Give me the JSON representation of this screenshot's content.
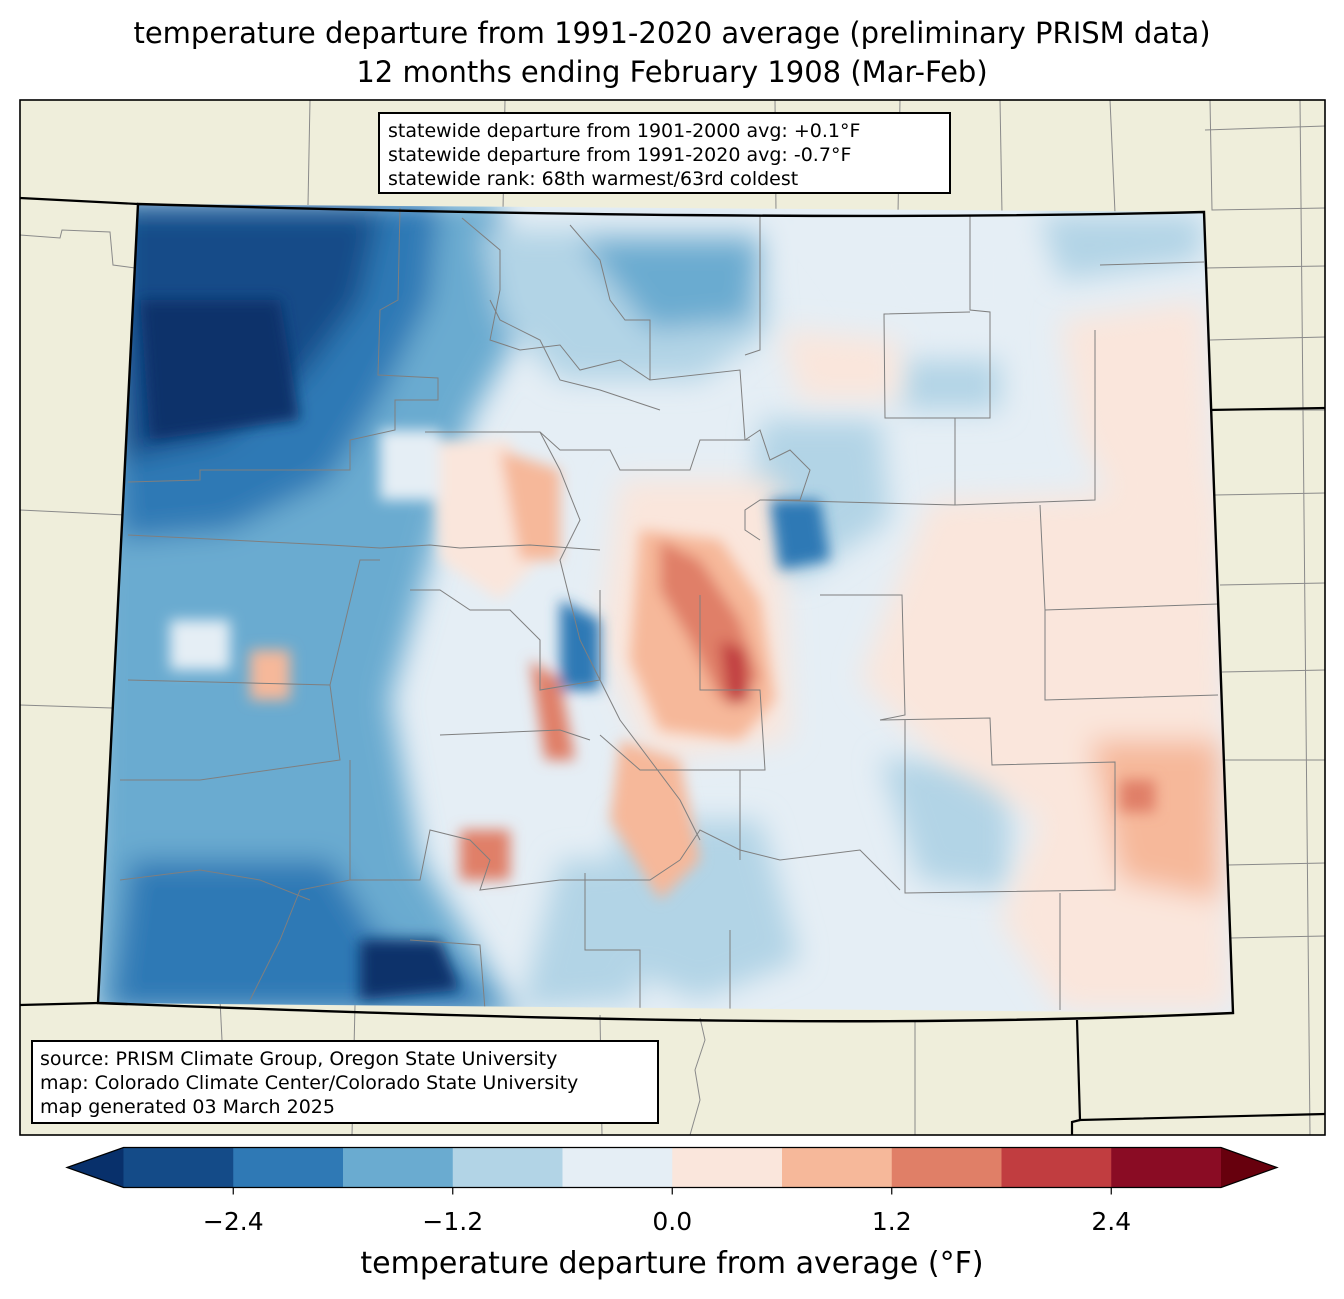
{
  "title": {
    "line1": "temperature departure from 1991-2020 average (preliminary PRISM data)",
    "line2": "12 months ending February 1908 (Mar-Feb)"
  },
  "stats_box": {
    "lines": [
      "statewide departure from 1901-2000 avg: +0.1°F",
      "statewide departure from 1991-2020 avg: -0.7°F",
      "statewide rank: 68th warmest/63rd coldest"
    ]
  },
  "source_box": {
    "lines": [
      "source: PRISM Climate Group, Oregon State University",
      "map: Colorado Climate Center/Colorado State University",
      "map generated 03 March 2025"
    ]
  },
  "colorbar": {
    "label": "temperature departure from average (°F)",
    "ticks": [
      "−2.4",
      "−1.2",
      "0.0",
      "1.2",
      "2.4"
    ],
    "tick_values": [
      -2.4,
      -1.2,
      0.0,
      1.2,
      2.4
    ],
    "range": [
      -3.0,
      3.0
    ],
    "step": 0.6,
    "under_color": "#08306b",
    "over_color": "#67000d",
    "colors": [
      "#144b88",
      "#2f79b5",
      "#6aabd0",
      "#b2d4e6",
      "#e5eef5",
      "#fae6dc",
      "#f6b89a",
      "#e07f67",
      "#c13d40",
      "#8a0c24"
    ]
  },
  "map": {
    "land_color": "#efeedb",
    "state_fill_mid": "#e5eef5"
  }
}
